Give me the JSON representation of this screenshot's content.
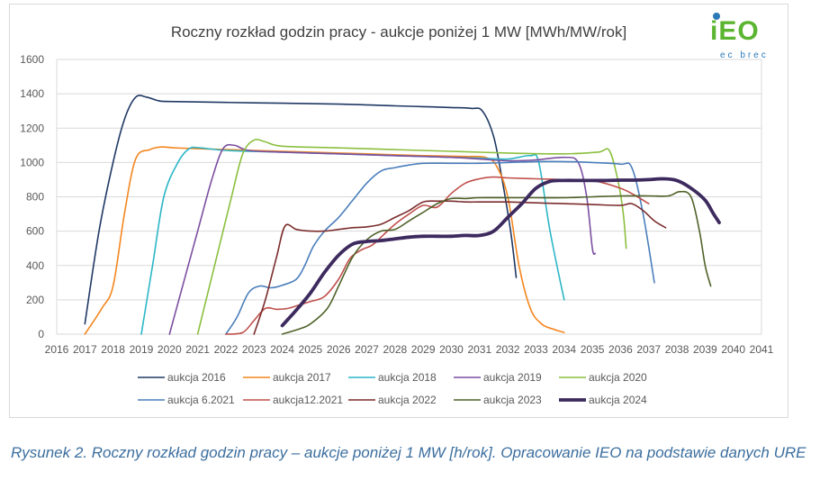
{
  "logo": {
    "text": "iEO",
    "subtext": "ec brec"
  },
  "caption": "Rysunek 2. Roczny rozkład godzin pracy – aukcje poniżej 1 MW [h/rok]. Opracowanie IEO na podstawie danych URE",
  "chart_data": {
    "type": "line",
    "title": "Roczny rozkład godzin pracy - aukcje poniżej 1 MW [MWh/MW/rok]",
    "xlabel": "",
    "ylabel": "",
    "xlim": [
      2016,
      2041
    ],
    "ylim": [
      0,
      1600
    ],
    "x_ticks": [
      "2016",
      "2017",
      "2018",
      "2019",
      "2020",
      "2021",
      "2022",
      "2023",
      "2024",
      "2025",
      "2026",
      "2027",
      "2028",
      "2029",
      "2030",
      "2031",
      "2032",
      "2033",
      "2034",
      "2035",
      "2036",
      "2037",
      "2038",
      "2039",
      "2040",
      "2041"
    ],
    "y_ticks": [
      "0",
      "200",
      "400",
      "600",
      "800",
      "1000",
      "1200",
      "1400",
      "1600"
    ],
    "grid": "horizontal",
    "legend_position": "bottom",
    "series": [
      {
        "name": "aukcja 2016",
        "color": "#1f3864",
        "width": 1.6,
        "points": [
          [
            2017,
            60
          ],
          [
            2017.5,
            600
          ],
          [
            2018,
            1000
          ],
          [
            2018.4,
            1250
          ],
          [
            2018.8,
            1380
          ],
          [
            2019.2,
            1380
          ],
          [
            2019.6,
            1360
          ],
          [
            2020,
            1355
          ],
          [
            2022,
            1350
          ],
          [
            2024,
            1345
          ],
          [
            2026,
            1340
          ],
          [
            2028,
            1330
          ],
          [
            2029,
            1325
          ],
          [
            2030,
            1320
          ],
          [
            2030.7,
            1315
          ],
          [
            2031.1,
            1300
          ],
          [
            2031.5,
            1150
          ],
          [
            2031.8,
            900
          ],
          [
            2032.1,
            600
          ],
          [
            2032.3,
            330
          ]
        ]
      },
      {
        "name": "aukcja 2017",
        "color": "#f4861f",
        "width": 1.6,
        "points": [
          [
            2017,
            0
          ],
          [
            2017.6,
            150
          ],
          [
            2018,
            280
          ],
          [
            2018.4,
            700
          ],
          [
            2018.8,
            1020
          ],
          [
            2019.3,
            1075
          ],
          [
            2019.7,
            1090
          ],
          [
            2020.2,
            1085
          ],
          [
            2021,
            1080
          ],
          [
            2023,
            1070
          ],
          [
            2025,
            1060
          ],
          [
            2027,
            1050
          ],
          [
            2029,
            1040
          ],
          [
            2030.5,
            1035
          ],
          [
            2031.2,
            1030
          ],
          [
            2031.6,
            980
          ],
          [
            2032,
            800
          ],
          [
            2032.4,
            400
          ],
          [
            2032.8,
            150
          ],
          [
            2033.2,
            60
          ],
          [
            2033.6,
            30
          ],
          [
            2034,
            10
          ]
        ]
      },
      {
        "name": "aukcja 2018",
        "color": "#2cb6c6",
        "width": 1.6,
        "points": [
          [
            2019,
            0
          ],
          [
            2019.4,
            400
          ],
          [
            2019.8,
            800
          ],
          [
            2020.3,
            1000
          ],
          [
            2020.7,
            1080
          ],
          [
            2021.1,
            1085
          ],
          [
            2022,
            1070
          ],
          [
            2024,
            1060
          ],
          [
            2026,
            1050
          ],
          [
            2028,
            1040
          ],
          [
            2030,
            1030
          ],
          [
            2031,
            1025
          ],
          [
            2032,
            1020
          ],
          [
            2032.8,
            1040
          ],
          [
            2033.1,
            1000
          ],
          [
            2033.5,
            600
          ],
          [
            2034,
            200
          ]
        ]
      },
      {
        "name": "aukcja 2019",
        "color": "#7b4fa0",
        "width": 1.6,
        "points": [
          [
            2020,
            0
          ],
          [
            2020.5,
            300
          ],
          [
            2021,
            600
          ],
          [
            2021.5,
            900
          ],
          [
            2021.9,
            1080
          ],
          [
            2022.3,
            1100
          ],
          [
            2022.8,
            1070
          ],
          [
            2024,
            1060
          ],
          [
            2026,
            1050
          ],
          [
            2028,
            1040
          ],
          [
            2030,
            1030
          ],
          [
            2031,
            1020
          ],
          [
            2032,
            1010
          ],
          [
            2033,
            1015
          ],
          [
            2034,
            1030
          ],
          [
            2034.5,
            1000
          ],
          [
            2034.8,
            800
          ],
          [
            2035,
            500
          ],
          [
            2035.1,
            470
          ]
        ]
      },
      {
        "name": "aukcja 2020",
        "color": "#8cbf3f",
        "width": 1.6,
        "points": [
          [
            2021,
            0
          ],
          [
            2021.6,
            400
          ],
          [
            2022.2,
            800
          ],
          [
            2022.6,
            1050
          ],
          [
            2023,
            1130
          ],
          [
            2023.4,
            1120
          ],
          [
            2024,
            1095
          ],
          [
            2026,
            1085
          ],
          [
            2028,
            1075
          ],
          [
            2030,
            1065
          ],
          [
            2032,
            1055
          ],
          [
            2034,
            1050
          ],
          [
            2035.2,
            1060
          ],
          [
            2035.6,
            1070
          ],
          [
            2035.9,
            900
          ],
          [
            2036.1,
            700
          ],
          [
            2036.2,
            500
          ]
        ]
      },
      {
        "name": "aukcja 6.2021",
        "color": "#4a7ebb",
        "width": 1.6,
        "points": [
          [
            2022,
            0
          ],
          [
            2022.4,
            100
          ],
          [
            2022.8,
            240
          ],
          [
            2023.2,
            280
          ],
          [
            2023.6,
            270
          ],
          [
            2024,
            285
          ],
          [
            2024.5,
            320
          ],
          [
            2024.8,
            400
          ],
          [
            2025.1,
            510
          ],
          [
            2025.5,
            600
          ],
          [
            2026,
            680
          ],
          [
            2026.5,
            780
          ],
          [
            2027,
            880
          ],
          [
            2027.5,
            950
          ],
          [
            2028,
            970
          ],
          [
            2028.5,
            985
          ],
          [
            2029,
            995
          ],
          [
            2030,
            995
          ],
          [
            2031,
            995
          ],
          [
            2032,
            1000
          ],
          [
            2033,
            1005
          ],
          [
            2034,
            1005
          ],
          [
            2035,
            1000
          ],
          [
            2036,
            990
          ],
          [
            2036.4,
            970
          ],
          [
            2036.8,
            700
          ],
          [
            2037.2,
            300
          ]
        ]
      },
      {
        "name": "aukcja12.2021",
        "color": "#c0504d",
        "width": 1.6,
        "points": [
          [
            2022,
            0
          ],
          [
            2022.6,
            10
          ],
          [
            2023,
            80
          ],
          [
            2023.4,
            150
          ],
          [
            2023.8,
            145
          ],
          [
            2024.2,
            150
          ],
          [
            2024.6,
            170
          ],
          [
            2025,
            190
          ],
          [
            2025.5,
            220
          ],
          [
            2026,
            320
          ],
          [
            2026.4,
            440
          ],
          [
            2026.8,
            490
          ],
          [
            2027.2,
            520
          ],
          [
            2027.6,
            580
          ],
          [
            2028,
            640
          ],
          [
            2028.5,
            700
          ],
          [
            2029,
            750
          ],
          [
            2029.5,
            740
          ],
          [
            2030,
            820
          ],
          [
            2030.5,
            880
          ],
          [
            2031,
            905
          ],
          [
            2031.5,
            915
          ],
          [
            2032,
            910
          ],
          [
            2033,
            905
          ],
          [
            2034,
            900
          ],
          [
            2035,
            895
          ],
          [
            2036,
            850
          ],
          [
            2036.6,
            800
          ],
          [
            2037,
            760
          ]
        ]
      },
      {
        "name": "aukcja 2022",
        "color": "#7b2c2c",
        "width": 1.6,
        "points": [
          [
            2023,
            0
          ],
          [
            2023.4,
            200
          ],
          [
            2023.8,
            450
          ],
          [
            2024.1,
            630
          ],
          [
            2024.5,
            610
          ],
          [
            2025,
            600
          ],
          [
            2025.5,
            600
          ],
          [
            2026,
            610
          ],
          [
            2026.5,
            620
          ],
          [
            2027,
            625
          ],
          [
            2027.5,
            640
          ],
          [
            2028,
            680
          ],
          [
            2028.5,
            720
          ],
          [
            2029,
            770
          ],
          [
            2029.5,
            775
          ],
          [
            2030,
            775
          ],
          [
            2030.5,
            770
          ],
          [
            2031,
            770
          ],
          [
            2032,
            770
          ],
          [
            2033,
            765
          ],
          [
            2034,
            760
          ],
          [
            2035,
            755
          ],
          [
            2036,
            750
          ],
          [
            2036.4,
            760
          ],
          [
            2036.8,
            720
          ],
          [
            2037.2,
            660
          ],
          [
            2037.6,
            620
          ]
        ]
      },
      {
        "name": "aukcja 2023",
        "color": "#4f6228",
        "width": 1.6,
        "points": [
          [
            2024,
            0
          ],
          [
            2024.6,
            30
          ],
          [
            2025,
            60
          ],
          [
            2025.6,
            150
          ],
          [
            2026,
            280
          ],
          [
            2026.5,
            450
          ],
          [
            2027,
            550
          ],
          [
            2027.5,
            600
          ],
          [
            2028,
            610
          ],
          [
            2028.5,
            660
          ],
          [
            2029,
            710
          ],
          [
            2029.5,
            760
          ],
          [
            2030,
            790
          ],
          [
            2030.5,
            790
          ],
          [
            2031,
            795
          ],
          [
            2032,
            795
          ],
          [
            2033,
            795
          ],
          [
            2034,
            795
          ],
          [
            2035,
            800
          ],
          [
            2036,
            805
          ],
          [
            2037,
            805
          ],
          [
            2037.7,
            805
          ],
          [
            2038.1,
            830
          ],
          [
            2038.5,
            800
          ],
          [
            2038.8,
            600
          ],
          [
            2039,
            400
          ],
          [
            2039.2,
            280
          ]
        ]
      },
      {
        "name": "aukcja 2024",
        "color": "#3d2a5e",
        "width": 3.8,
        "points": [
          [
            2024,
            50
          ],
          [
            2024.5,
            140
          ],
          [
            2025,
            240
          ],
          [
            2025.5,
            360
          ],
          [
            2026,
            460
          ],
          [
            2026.5,
            525
          ],
          [
            2027,
            540
          ],
          [
            2027.5,
            545
          ],
          [
            2028,
            555
          ],
          [
            2028.5,
            565
          ],
          [
            2029,
            570
          ],
          [
            2029.5,
            570
          ],
          [
            2030,
            570
          ],
          [
            2030.5,
            575
          ],
          [
            2031,
            575
          ],
          [
            2031.5,
            600
          ],
          [
            2032,
            680
          ],
          [
            2032.5,
            760
          ],
          [
            2033,
            850
          ],
          [
            2033.5,
            890
          ],
          [
            2034,
            895
          ],
          [
            2034.5,
            895
          ],
          [
            2035,
            895
          ],
          [
            2035.5,
            895
          ],
          [
            2036,
            897
          ],
          [
            2036.5,
            897
          ],
          [
            2037,
            900
          ],
          [
            2037.5,
            905
          ],
          [
            2038,
            895
          ],
          [
            2038.5,
            850
          ],
          [
            2039,
            780
          ],
          [
            2039.3,
            700
          ],
          [
            2039.5,
            650
          ]
        ]
      }
    ]
  }
}
